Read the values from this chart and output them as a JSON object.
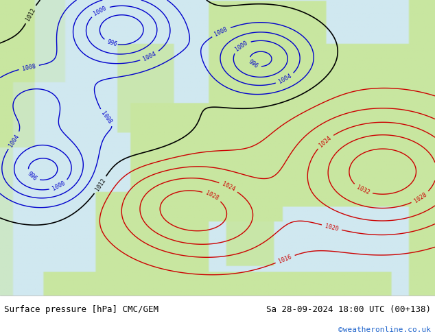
{
  "title_left": "Surface pressure [hPa] CMC/GEM",
  "title_right": "Sa 28-09-2024 18:00 UTC (00+138)",
  "credit": "©weatheronline.co.uk",
  "bg_color": "#d0e8f0",
  "land_color": "#c8e6a0",
  "sea_color": "#d0e8f0",
  "fig_width": 6.34,
  "fig_height": 4.9,
  "bottom_bar_color": "#ffffff",
  "text_color_black": "#000000",
  "text_color_blue": "#0000cc",
  "credit_color": "#2266cc"
}
